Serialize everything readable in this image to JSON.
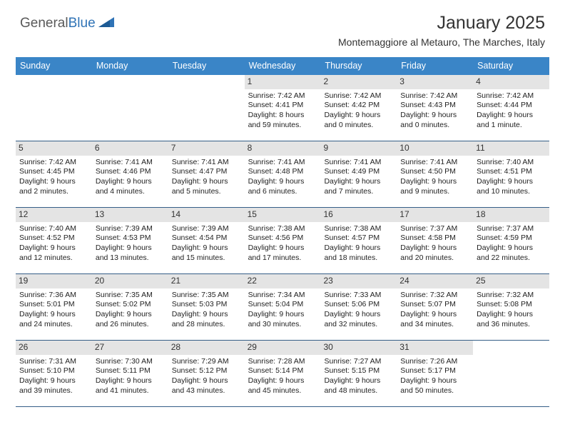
{
  "logo": {
    "text1": "General",
    "text2": "Blue"
  },
  "header": {
    "title": "January 2025",
    "subtitle": "Montemaggiore al Metauro, The Marches, Italy"
  },
  "styling": {
    "header_bg": "#3a85c7",
    "header_fg": "#ffffff",
    "daynum_bg": "#e4e4e4",
    "week_border": "#355e87",
    "body_font_size": 10.5,
    "title_font_size": 25,
    "subtitle_font_size": 14
  },
  "day_headers": [
    "Sunday",
    "Monday",
    "Tuesday",
    "Wednesday",
    "Thursday",
    "Friday",
    "Saturday"
  ],
  "weeks": [
    [
      {
        "empty": true
      },
      {
        "empty": true
      },
      {
        "empty": true
      },
      {
        "num": "1",
        "sunrise": "Sunrise: 7:42 AM",
        "sunset": "Sunset: 4:41 PM",
        "daylight": "Daylight: 8 hours and 59 minutes."
      },
      {
        "num": "2",
        "sunrise": "Sunrise: 7:42 AM",
        "sunset": "Sunset: 4:42 PM",
        "daylight": "Daylight: 9 hours and 0 minutes."
      },
      {
        "num": "3",
        "sunrise": "Sunrise: 7:42 AM",
        "sunset": "Sunset: 4:43 PM",
        "daylight": "Daylight: 9 hours and 0 minutes."
      },
      {
        "num": "4",
        "sunrise": "Sunrise: 7:42 AM",
        "sunset": "Sunset: 4:44 PM",
        "daylight": "Daylight: 9 hours and 1 minute."
      }
    ],
    [
      {
        "num": "5",
        "sunrise": "Sunrise: 7:42 AM",
        "sunset": "Sunset: 4:45 PM",
        "daylight": "Daylight: 9 hours and 2 minutes."
      },
      {
        "num": "6",
        "sunrise": "Sunrise: 7:41 AM",
        "sunset": "Sunset: 4:46 PM",
        "daylight": "Daylight: 9 hours and 4 minutes."
      },
      {
        "num": "7",
        "sunrise": "Sunrise: 7:41 AM",
        "sunset": "Sunset: 4:47 PM",
        "daylight": "Daylight: 9 hours and 5 minutes."
      },
      {
        "num": "8",
        "sunrise": "Sunrise: 7:41 AM",
        "sunset": "Sunset: 4:48 PM",
        "daylight": "Daylight: 9 hours and 6 minutes."
      },
      {
        "num": "9",
        "sunrise": "Sunrise: 7:41 AM",
        "sunset": "Sunset: 4:49 PM",
        "daylight": "Daylight: 9 hours and 7 minutes."
      },
      {
        "num": "10",
        "sunrise": "Sunrise: 7:41 AM",
        "sunset": "Sunset: 4:50 PM",
        "daylight": "Daylight: 9 hours and 9 minutes."
      },
      {
        "num": "11",
        "sunrise": "Sunrise: 7:40 AM",
        "sunset": "Sunset: 4:51 PM",
        "daylight": "Daylight: 9 hours and 10 minutes."
      }
    ],
    [
      {
        "num": "12",
        "sunrise": "Sunrise: 7:40 AM",
        "sunset": "Sunset: 4:52 PM",
        "daylight": "Daylight: 9 hours and 12 minutes."
      },
      {
        "num": "13",
        "sunrise": "Sunrise: 7:39 AM",
        "sunset": "Sunset: 4:53 PM",
        "daylight": "Daylight: 9 hours and 13 minutes."
      },
      {
        "num": "14",
        "sunrise": "Sunrise: 7:39 AM",
        "sunset": "Sunset: 4:54 PM",
        "daylight": "Daylight: 9 hours and 15 minutes."
      },
      {
        "num": "15",
        "sunrise": "Sunrise: 7:38 AM",
        "sunset": "Sunset: 4:56 PM",
        "daylight": "Daylight: 9 hours and 17 minutes."
      },
      {
        "num": "16",
        "sunrise": "Sunrise: 7:38 AM",
        "sunset": "Sunset: 4:57 PM",
        "daylight": "Daylight: 9 hours and 18 minutes."
      },
      {
        "num": "17",
        "sunrise": "Sunrise: 7:37 AM",
        "sunset": "Sunset: 4:58 PM",
        "daylight": "Daylight: 9 hours and 20 minutes."
      },
      {
        "num": "18",
        "sunrise": "Sunrise: 7:37 AM",
        "sunset": "Sunset: 4:59 PM",
        "daylight": "Daylight: 9 hours and 22 minutes."
      }
    ],
    [
      {
        "num": "19",
        "sunrise": "Sunrise: 7:36 AM",
        "sunset": "Sunset: 5:01 PM",
        "daylight": "Daylight: 9 hours and 24 minutes."
      },
      {
        "num": "20",
        "sunrise": "Sunrise: 7:35 AM",
        "sunset": "Sunset: 5:02 PM",
        "daylight": "Daylight: 9 hours and 26 minutes."
      },
      {
        "num": "21",
        "sunrise": "Sunrise: 7:35 AM",
        "sunset": "Sunset: 5:03 PM",
        "daylight": "Daylight: 9 hours and 28 minutes."
      },
      {
        "num": "22",
        "sunrise": "Sunrise: 7:34 AM",
        "sunset": "Sunset: 5:04 PM",
        "daylight": "Daylight: 9 hours and 30 minutes."
      },
      {
        "num": "23",
        "sunrise": "Sunrise: 7:33 AM",
        "sunset": "Sunset: 5:06 PM",
        "daylight": "Daylight: 9 hours and 32 minutes."
      },
      {
        "num": "24",
        "sunrise": "Sunrise: 7:32 AM",
        "sunset": "Sunset: 5:07 PM",
        "daylight": "Daylight: 9 hours and 34 minutes."
      },
      {
        "num": "25",
        "sunrise": "Sunrise: 7:32 AM",
        "sunset": "Sunset: 5:08 PM",
        "daylight": "Daylight: 9 hours and 36 minutes."
      }
    ],
    [
      {
        "num": "26",
        "sunrise": "Sunrise: 7:31 AM",
        "sunset": "Sunset: 5:10 PM",
        "daylight": "Daylight: 9 hours and 39 minutes."
      },
      {
        "num": "27",
        "sunrise": "Sunrise: 7:30 AM",
        "sunset": "Sunset: 5:11 PM",
        "daylight": "Daylight: 9 hours and 41 minutes."
      },
      {
        "num": "28",
        "sunrise": "Sunrise: 7:29 AM",
        "sunset": "Sunset: 5:12 PM",
        "daylight": "Daylight: 9 hours and 43 minutes."
      },
      {
        "num": "29",
        "sunrise": "Sunrise: 7:28 AM",
        "sunset": "Sunset: 5:14 PM",
        "daylight": "Daylight: 9 hours and 45 minutes."
      },
      {
        "num": "30",
        "sunrise": "Sunrise: 7:27 AM",
        "sunset": "Sunset: 5:15 PM",
        "daylight": "Daylight: 9 hours and 48 minutes."
      },
      {
        "num": "31",
        "sunrise": "Sunrise: 7:26 AM",
        "sunset": "Sunset: 5:17 PM",
        "daylight": "Daylight: 9 hours and 50 minutes."
      },
      {
        "empty": true
      }
    ]
  ]
}
